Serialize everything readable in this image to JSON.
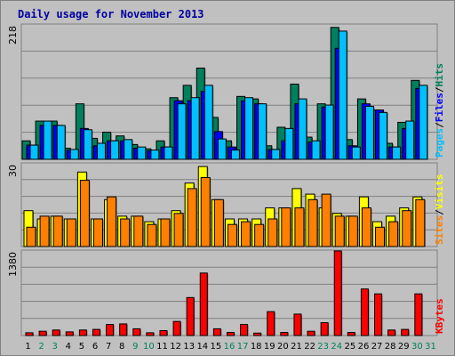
{
  "title": "Daily usage for November 2013",
  "colors": {
    "hits": "#00805c",
    "files": "#0000ff",
    "pages": "#00c0ff",
    "visits": "#ffff00",
    "sites": "#ff8000",
    "kbytes": "#ff0000",
    "weekday_label": "#000000",
    "weekend_label": "#00805c",
    "plot_bg": "#c0c0c0",
    "frame_bg": "#c0c0c0"
  },
  "chart_data": [
    {
      "type": "bar",
      "name": "hits-files-pages",
      "axis_max_label": "218",
      "ylim": [
        0,
        218
      ],
      "legend": [
        "Pages",
        "/",
        "Files",
        "/",
        "Hits"
      ],
      "categories": [
        "1",
        "2",
        "3",
        "4",
        "5",
        "6",
        "7",
        "8",
        "9",
        "10",
        "11",
        "12",
        "13",
        "14",
        "15",
        "16",
        "17",
        "18",
        "19",
        "20",
        "21",
        "22",
        "23",
        "24",
        "25",
        "26",
        "27",
        "28",
        "29",
        "30",
        "31"
      ],
      "series": [
        {
          "name": "Hits",
          "color": "#00805c",
          "values": [
            30,
            62,
            62,
            18,
            90,
            34,
            44,
            38,
            24,
            17,
            30,
            100,
            120,
            148,
            68,
            30,
            102,
            98,
            22,
            52,
            122,
            36,
            90,
            214,
            32,
            98,
            80,
            26,
            60,
            128,
            0
          ]
        },
        {
          "name": "Files",
          "color": "#0000ff",
          "values": [
            23,
            55,
            55,
            15,
            50,
            22,
            30,
            30,
            18,
            14,
            20,
            95,
            95,
            110,
            45,
            20,
            95,
            90,
            16,
            30,
            90,
            28,
            85,
            180,
            22,
            90,
            80,
            20,
            50,
            115,
            0
          ]
        },
        {
          "name": "Pages",
          "color": "#00c0ff",
          "values": [
            23,
            62,
            55,
            16,
            48,
            26,
            30,
            32,
            20,
            15,
            20,
            90,
            100,
            120,
            33,
            15,
            100,
            90,
            16,
            50,
            98,
            30,
            88,
            208,
            20,
            86,
            76,
            20,
            62,
            120,
            0
          ]
        }
      ]
    },
    {
      "type": "bar",
      "name": "visits-sites",
      "axis_max_label": "30",
      "ylim": [
        0,
        30
      ],
      "legend": [
        "Sites",
        "/",
        "Visits"
      ],
      "categories": [
        "1",
        "2",
        "3",
        "4",
        "5",
        "6",
        "7",
        "8",
        "9",
        "10",
        "11",
        "12",
        "13",
        "14",
        "15",
        "16",
        "17",
        "18",
        "19",
        "20",
        "21",
        "22",
        "23",
        "24",
        "25",
        "26",
        "27",
        "28",
        "29",
        "30",
        "31"
      ],
      "series": [
        {
          "name": "Visits",
          "color": "#ffff00",
          "values": [
            13,
            10,
            11,
            10,
            27,
            10,
            17,
            11,
            11,
            9,
            10,
            13,
            23,
            29,
            17,
            10,
            10,
            10,
            14,
            14,
            21,
            19,
            14,
            12,
            11,
            18,
            9,
            11,
            14,
            18,
            0
          ]
        },
        {
          "name": "Sites",
          "color": "#ff8000",
          "values": [
            7,
            11,
            11,
            10,
            24,
            10,
            18,
            10,
            11,
            8,
            10,
            12,
            21,
            25,
            17,
            8,
            9,
            8,
            10,
            14,
            14,
            17,
            19,
            11,
            11,
            14,
            7,
            9,
            13,
            17,
            0
          ]
        }
      ]
    },
    {
      "type": "bar",
      "name": "kbytes",
      "axis_max_label": "1380",
      "ylim": [
        0,
        1380
      ],
      "legend": [
        "KBytes"
      ],
      "categories": [
        "1",
        "2",
        "3",
        "4",
        "5",
        "6",
        "7",
        "8",
        "9",
        "10",
        "11",
        "12",
        "13",
        "14",
        "15",
        "16",
        "17",
        "18",
        "19",
        "20",
        "21",
        "22",
        "23",
        "24",
        "25",
        "26",
        "27",
        "28",
        "29",
        "30",
        "31"
      ],
      "series": [
        {
          "name": "KBytes",
          "color": "#ff0000",
          "values": [
            45,
            70,
            90,
            60,
            90,
            100,
            180,
            190,
            110,
            45,
            80,
            230,
            620,
            1020,
            110,
            50,
            180,
            40,
            390,
            50,
            350,
            70,
            210,
            1380,
            50,
            760,
            680,
            90,
            100,
            680,
            0
          ]
        }
      ]
    }
  ]
}
